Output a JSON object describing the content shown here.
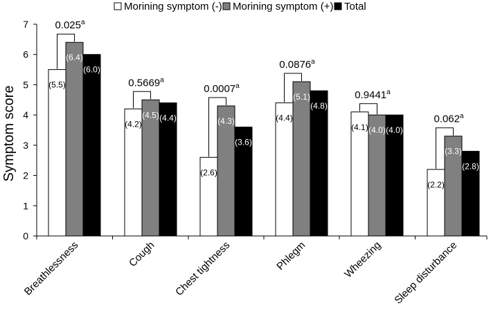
{
  "chart_data": {
    "type": "bar",
    "title": "",
    "ylabel": "Symptom score",
    "xlabel": "",
    "ylim": [
      0,
      7
    ],
    "yticks": [
      0,
      1,
      2,
      3,
      4,
      5,
      6,
      7
    ],
    "categories": [
      "Breathlessness",
      "Cough",
      "Chest tightness",
      "Phlegm",
      "Wheezing",
      "Sleep disturbance"
    ],
    "series": [
      {
        "name": "Morining symptom (-)",
        "color": "#ffffff",
        "values": [
          5.5,
          4.2,
          2.6,
          4.4,
          4.1,
          2.2
        ],
        "value_labels": [
          "(5.5)",
          "(4.2)",
          "(2.6)",
          "(4.4)",
          "(4.1)",
          "(2.2)"
        ],
        "label_color": "#000000"
      },
      {
        "name": "Morining symptom (+)",
        "color": "#808080",
        "values": [
          6.4,
          4.5,
          4.3,
          5.1,
          4.0,
          3.3
        ],
        "value_labels": [
          "(6.4)",
          "(4.5)",
          "(4.3)",
          "(5.1)",
          "(4.0)",
          "(3.3)"
        ],
        "label_color": "#ffffff"
      },
      {
        "name": "Total",
        "color": "#000000",
        "values": [
          6.0,
          4.4,
          3.6,
          4.8,
          4.0,
          2.8
        ],
        "value_labels": [
          "(6.0)",
          "(4.4)",
          "(3.6)",
          "(4.8)",
          "(4.0)",
          "(2.8)"
        ],
        "label_color": "#ffffff"
      }
    ],
    "p_values": [
      {
        "value": "0.025",
        "sup": "a"
      },
      {
        "value": "0.5669",
        "sup": "a"
      },
      {
        "value": "0.0007",
        "sup": "a"
      },
      {
        "value": "0.0876",
        "sup": "a"
      },
      {
        "value": "0.9441",
        "sup": "a"
      },
      {
        "value": "0.062",
        "sup": "a"
      }
    ],
    "legend_position": "top",
    "grid": false
  }
}
